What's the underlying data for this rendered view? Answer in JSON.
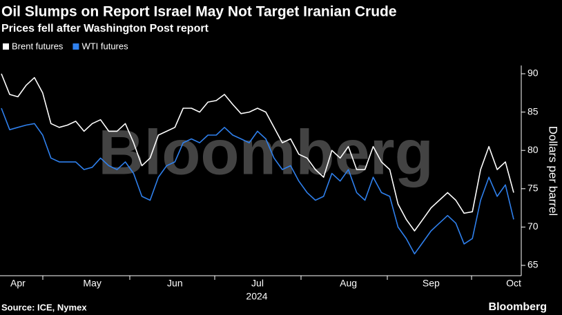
{
  "chart_data": {
    "type": "line",
    "title": "Oil Slumps on Report Israel May Not Target Iranian Crude",
    "subtitle": "Prices fell after Washington Post report",
    "ylabel": "Dollars per barrel",
    "x_sublabel": "2024",
    "watermark": "Bloomberg",
    "source": "Source: ICE, Nymex",
    "brand": "Bloomberg",
    "categories": [
      null,
      null,
      "Apr",
      null,
      null,
      null,
      null,
      null,
      null,
      null,
      null,
      "May",
      null,
      null,
      null,
      null,
      null,
      null,
      null,
      null,
      null,
      "Jun",
      null,
      null,
      null,
      null,
      null,
      null,
      null,
      null,
      null,
      "Jul",
      null,
      null,
      null,
      null,
      null,
      null,
      null,
      null,
      null,
      null,
      "Aug",
      null,
      null,
      null,
      null,
      null,
      null,
      null,
      null,
      null,
      "Sep",
      null,
      null,
      null,
      null,
      null,
      null,
      null,
      null,
      null,
      "Oct"
    ],
    "series": [
      {
        "name": "Brent futures",
        "color": "#ffffff",
        "values": [
          90,
          87.3,
          87,
          88.5,
          89.5,
          87.5,
          83.5,
          83,
          83.3,
          83.8,
          82.5,
          83.5,
          84,
          82.5,
          82.5,
          83.5,
          81,
          78,
          79,
          82,
          82.5,
          83,
          85.5,
          85.5,
          85,
          86.3,
          86.5,
          87.3,
          86,
          84.8,
          85,
          85.5,
          85,
          83,
          81,
          81.5,
          79.5,
          79,
          77.5,
          76.5,
          80,
          79,
          80.5,
          77.5,
          77.5,
          80.5,
          78.5,
          77.5,
          73,
          71,
          69.5,
          71,
          72.5,
          73.5,
          74.5,
          73.5,
          71.8,
          72,
          77.5,
          80.5,
          77.5,
          78.5,
          74.5
        ]
      },
      {
        "name": "WTI futures",
        "color": "#2f80ed",
        "values": [
          85.5,
          82.7,
          83,
          83.3,
          83.5,
          82,
          79,
          78.5,
          78.5,
          78.5,
          77.5,
          77.8,
          79,
          78,
          77.5,
          78.5,
          77,
          74,
          73.5,
          76.5,
          78,
          78.5,
          81,
          81.5,
          81,
          82,
          82,
          83,
          82,
          81.5,
          81,
          82.5,
          81.5,
          79,
          77.5,
          78,
          76,
          74.5,
          73.5,
          74,
          77,
          76,
          77.5,
          74.5,
          73.5,
          76.5,
          74.5,
          74,
          70,
          68.5,
          66.5,
          68,
          69.5,
          70.5,
          71.5,
          70.5,
          67.8,
          68.5,
          73.5,
          76.5,
          74,
          75.5,
          71
        ]
      }
    ],
    "ylim": [
      63.65,
      90.63
    ],
    "yticks": [
      65,
      70,
      75,
      80,
      85,
      90
    ]
  }
}
